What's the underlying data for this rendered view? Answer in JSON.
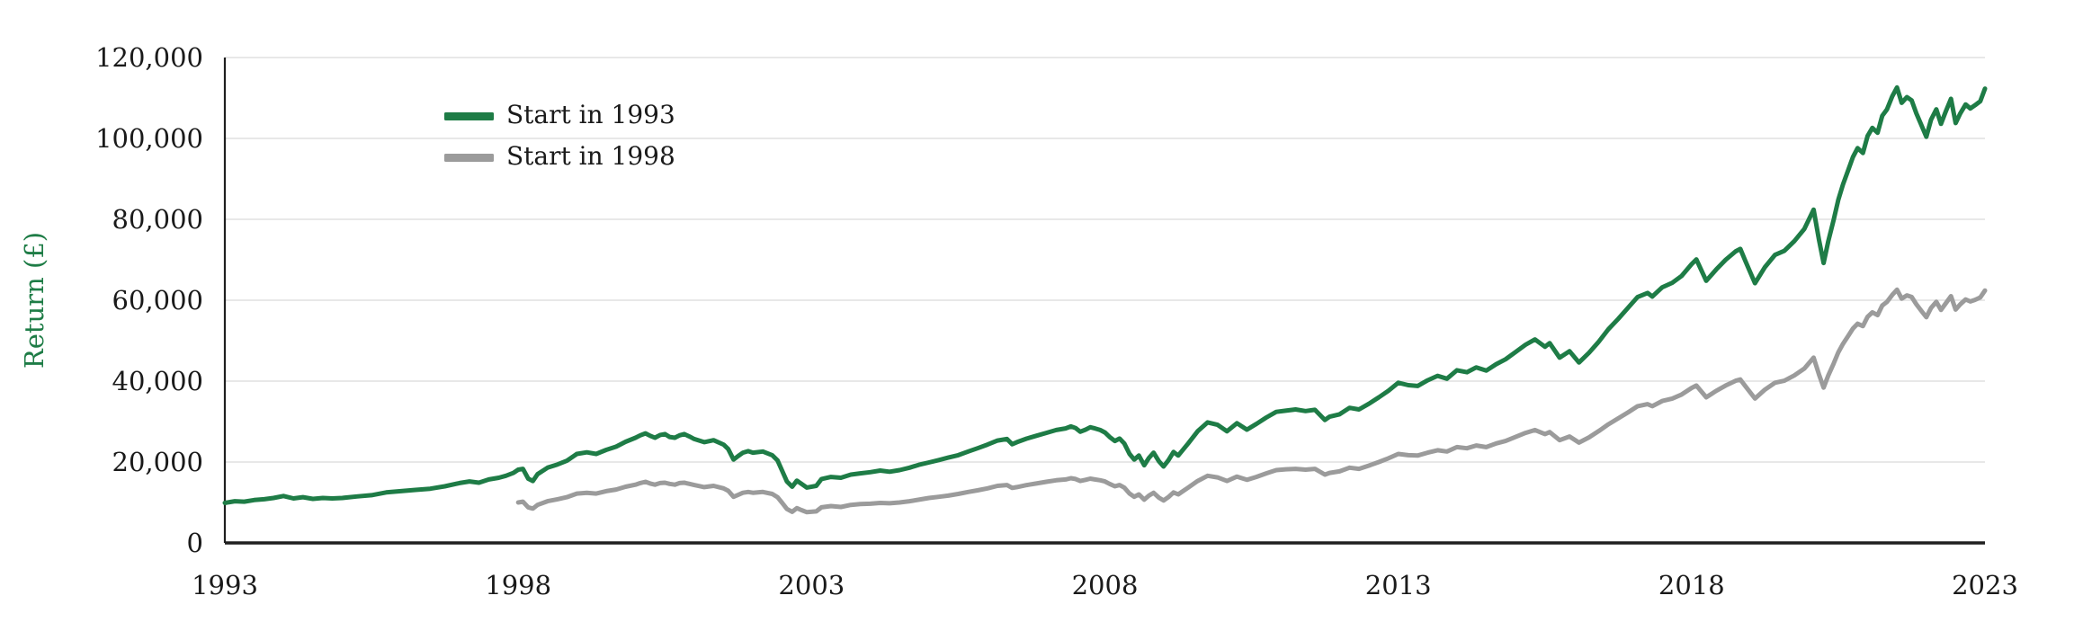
{
  "chart": {
    "y_axis_label": "Return (£)",
    "legend_items": [
      "Start in 1993",
      "Start in 1998"
    ],
    "colors": {
      "series_1993": "#1e7c46",
      "series_1998": "#9b9b9b",
      "gridline": "#e0e0e0",
      "axis": "#1f1f1f",
      "tick_text": "#1a1a1a",
      "y_label_text": "#1e7c46",
      "background": "#ffffff"
    }
  },
  "chart_data": {
    "type": "line",
    "title": "",
    "xlabel": "",
    "ylabel": "Return (£)",
    "xlim": [
      1993,
      2023
    ],
    "ylim": [
      0,
      120000
    ],
    "x_tick_values": [
      1993,
      1998,
      2003,
      2008,
      2013,
      2018,
      2023
    ],
    "x_tick_labels": [
      "1993",
      "1998",
      "2003",
      "2008",
      "2013",
      "2018",
      "2023"
    ],
    "y_tick_values": [
      0,
      20000,
      40000,
      60000,
      80000,
      100000,
      120000
    ],
    "y_tick_labels": [
      "0",
      "20,000",
      "40,000",
      "60,000",
      "80,000",
      "100,000",
      "120,000"
    ],
    "grid": "horizontal",
    "legend_position": "upper-left-inside",
    "series": [
      {
        "name": "Start in 1993",
        "color": "#1e7c46",
        "x": [
          1993.0,
          1993.17,
          1993.33,
          1993.5,
          1993.67,
          1993.83,
          1994.0,
          1994.17,
          1994.33,
          1994.5,
          1994.67,
          1994.83,
          1995.0,
          1995.25,
          1995.5,
          1995.75,
          1996.0,
          1996.25,
          1996.5,
          1996.75,
          1997.0,
          1997.17,
          1997.33,
          1997.5,
          1997.67,
          1997.79,
          1997.92,
          1998.0,
          1998.08,
          1998.17,
          1998.25,
          1998.33,
          1998.5,
          1998.67,
          1998.83,
          1999.0,
          1999.17,
          1999.33,
          1999.5,
          1999.67,
          1999.83,
          2000.0,
          2000.08,
          2000.17,
          2000.25,
          2000.33,
          2000.42,
          2000.5,
          2000.58,
          2000.67,
          2000.75,
          2000.83,
          2000.92,
          2001.0,
          2001.17,
          2001.33,
          2001.5,
          2001.58,
          2001.67,
          2001.75,
          2001.83,
          2001.92,
          2002.0,
          2002.17,
          2002.33,
          2002.42,
          2002.5,
          2002.58,
          2002.67,
          2002.75,
          2002.83,
          2002.92,
          2003.08,
          2003.17,
          2003.33,
          2003.5,
          2003.67,
          2003.83,
          2004.0,
          2004.17,
          2004.33,
          2004.5,
          2004.67,
          2004.83,
          2005.0,
          2005.17,
          2005.33,
          2005.5,
          2005.67,
          2005.83,
          2006.0,
          2006.17,
          2006.33,
          2006.42,
          2006.5,
          2006.67,
          2006.83,
          2007.0,
          2007.17,
          2007.33,
          2007.42,
          2007.5,
          2007.58,
          2007.67,
          2007.75,
          2007.83,
          2007.92,
          2008.0,
          2008.08,
          2008.17,
          2008.25,
          2008.33,
          2008.42,
          2008.5,
          2008.58,
          2008.67,
          2008.75,
          2008.83,
          2008.92,
          2009.0,
          2009.08,
          2009.17,
          2009.25,
          2009.42,
          2009.58,
          2009.75,
          2009.92,
          2010.08,
          2010.25,
          2010.42,
          2010.58,
          2010.75,
          2010.92,
          2011.08,
          2011.25,
          2011.42,
          2011.58,
          2011.75,
          2011.83,
          2012.0,
          2012.17,
          2012.33,
          2012.5,
          2012.67,
          2012.83,
          2013.0,
          2013.17,
          2013.33,
          2013.5,
          2013.67,
          2013.83,
          2014.0,
          2014.17,
          2014.33,
          2014.5,
          2014.67,
          2014.83,
          2015.0,
          2015.17,
          2015.33,
          2015.5,
          2015.58,
          2015.75,
          2015.92,
          2016.08,
          2016.25,
          2016.42,
          2016.58,
          2016.75,
          2016.92,
          2017.08,
          2017.25,
          2017.33,
          2017.5,
          2017.67,
          2017.83,
          2018.0,
          2018.08,
          2018.25,
          2018.42,
          2018.58,
          2018.75,
          2018.83,
          2018.92,
          2019.08,
          2019.25,
          2019.42,
          2019.58,
          2019.75,
          2019.92,
          2020.08,
          2020.17,
          2020.25,
          2020.33,
          2020.42,
          2020.5,
          2020.58,
          2020.67,
          2020.75,
          2020.83,
          2020.92,
          2021.0,
          2021.08,
          2021.17,
          2021.25,
          2021.33,
          2021.42,
          2021.5,
          2021.58,
          2021.67,
          2021.75,
          2021.83,
          2021.92,
          2022.0,
          2022.08,
          2022.17,
          2022.25,
          2022.33,
          2022.42,
          2022.5,
          2022.58,
          2022.67,
          2022.75,
          2022.83,
          2022.92,
          2023.0
        ],
        "y": [
          9900,
          10300,
          10200,
          10600,
          10800,
          11100,
          11600,
          11000,
          11300,
          10900,
          11100,
          11000,
          11100,
          11500,
          11800,
          12500,
          12800,
          13100,
          13400,
          14000,
          14800,
          15200,
          14900,
          15700,
          16100,
          16600,
          17300,
          18100,
          18300,
          15900,
          15300,
          17000,
          18600,
          19400,
          20300,
          22000,
          22400,
          22000,
          23000,
          23800,
          25000,
          26000,
          26600,
          27100,
          26500,
          26000,
          26700,
          26900,
          26200,
          26000,
          26600,
          26900,
          26300,
          25700,
          24900,
          25400,
          24300,
          23200,
          20600,
          21500,
          22300,
          22700,
          22300,
          22600,
          21700,
          20400,
          17800,
          15200,
          13900,
          15400,
          14600,
          13700,
          14100,
          15800,
          16300,
          16100,
          16900,
          17200,
          17500,
          17900,
          17600,
          18000,
          18600,
          19300,
          19900,
          20500,
          21100,
          21700,
          22600,
          23400,
          24300,
          25300,
          25700,
          24400,
          24900,
          25800,
          26500,
          27200,
          27900,
          28300,
          28800,
          28400,
          27500,
          28000,
          28600,
          28300,
          27900,
          27300,
          26200,
          25200,
          25800,
          24600,
          22000,
          20600,
          21600,
          19200,
          21000,
          22300,
          20200,
          18900,
          20400,
          22500,
          21600,
          24600,
          27600,
          29800,
          29200,
          27600,
          29600,
          28000,
          29400,
          31000,
          32400,
          32700,
          33000,
          32600,
          32900,
          30400,
          31200,
          31800,
          33400,
          33000,
          34400,
          36000,
          37600,
          39600,
          39000,
          38800,
          40200,
          41300,
          40600,
          42700,
          42200,
          43400,
          42600,
          44200,
          45400,
          47200,
          49000,
          50300,
          48500,
          49400,
          45800,
          47400,
          44600,
          47000,
          49800,
          52800,
          55400,
          58200,
          60800,
          61800,
          60900,
          63200,
          64300,
          66000,
          68900,
          70100,
          64800,
          67600,
          70000,
          72100,
          72700,
          69600,
          64200,
          68200,
          71200,
          72200,
          74600,
          77600,
          82400,
          75000,
          69200,
          74600,
          79800,
          84800,
          88600,
          92200,
          95400,
          97600,
          96400,
          100600,
          102600,
          101400,
          105600,
          107200,
          110400,
          112600,
          108800,
          110200,
          109400,
          106200,
          103200,
          100400,
          104600,
          107200,
          103600,
          106600,
          109800,
          103800,
          106200,
          108400,
          107400,
          108200,
          109200,
          112300
        ]
      },
      {
        "name": "Start in 1998",
        "color": "#9b9b9b",
        "x": [
          1998.0,
          1998.08,
          1998.17,
          1998.25,
          1998.33,
          1998.5,
          1998.67,
          1998.83,
          1999.0,
          1999.17,
          1999.33,
          1999.5,
          1999.67,
          1999.83,
          2000.0,
          2000.08,
          2000.17,
          2000.25,
          2000.33,
          2000.42,
          2000.5,
          2000.58,
          2000.67,
          2000.75,
          2000.83,
          2000.92,
          2001.0,
          2001.17,
          2001.33,
          2001.5,
          2001.58,
          2001.67,
          2001.75,
          2001.83,
          2001.92,
          2002.0,
          2002.17,
          2002.33,
          2002.42,
          2002.5,
          2002.58,
          2002.67,
          2002.75,
          2002.83,
          2002.92,
          2003.08,
          2003.17,
          2003.33,
          2003.5,
          2003.67,
          2003.83,
          2004.0,
          2004.17,
          2004.33,
          2004.5,
          2004.67,
          2004.83,
          2005.0,
          2005.17,
          2005.33,
          2005.5,
          2005.67,
          2005.83,
          2006.0,
          2006.17,
          2006.33,
          2006.42,
          2006.5,
          2006.67,
          2006.83,
          2007.0,
          2007.17,
          2007.33,
          2007.42,
          2007.5,
          2007.58,
          2007.67,
          2007.75,
          2007.83,
          2007.92,
          2008.0,
          2008.08,
          2008.17,
          2008.25,
          2008.33,
          2008.42,
          2008.5,
          2008.58,
          2008.67,
          2008.75,
          2008.83,
          2008.92,
          2009.0,
          2009.08,
          2009.17,
          2009.25,
          2009.42,
          2009.58,
          2009.75,
          2009.92,
          2010.08,
          2010.25,
          2010.42,
          2010.58,
          2010.75,
          2010.92,
          2011.08,
          2011.25,
          2011.42,
          2011.58,
          2011.75,
          2011.83,
          2012.0,
          2012.17,
          2012.33,
          2012.5,
          2012.67,
          2012.83,
          2013.0,
          2013.17,
          2013.33,
          2013.5,
          2013.67,
          2013.83,
          2014.0,
          2014.17,
          2014.33,
          2014.5,
          2014.67,
          2014.83,
          2015.0,
          2015.17,
          2015.33,
          2015.5,
          2015.58,
          2015.75,
          2015.92,
          2016.08,
          2016.25,
          2016.42,
          2016.58,
          2016.75,
          2016.92,
          2017.08,
          2017.25,
          2017.33,
          2017.5,
          2017.67,
          2017.83,
          2018.0,
          2018.08,
          2018.25,
          2018.42,
          2018.58,
          2018.75,
          2018.83,
          2018.92,
          2019.08,
          2019.25,
          2019.42,
          2019.58,
          2019.75,
          2019.92,
          2020.08,
          2020.17,
          2020.25,
          2020.33,
          2020.42,
          2020.5,
          2020.58,
          2020.67,
          2020.75,
          2020.83,
          2020.92,
          2021.0,
          2021.08,
          2021.17,
          2021.25,
          2021.33,
          2021.42,
          2021.5,
          2021.58,
          2021.67,
          2021.75,
          2021.83,
          2021.92,
          2022.0,
          2022.08,
          2022.17,
          2022.25,
          2022.33,
          2022.42,
          2022.5,
          2022.58,
          2022.67,
          2022.75,
          2022.83,
          2022.92,
          2023.0
        ],
        "y": [
          10000,
          10200,
          8800,
          8500,
          9400,
          10300,
          10800,
          11300,
          12200,
          12400,
          12200,
          12800,
          13200,
          13900,
          14400,
          14800,
          15100,
          14700,
          14400,
          14800,
          14900,
          14600,
          14400,
          14800,
          14900,
          14600,
          14300,
          13800,
          14100,
          13500,
          12900,
          11400,
          11900,
          12400,
          12600,
          12400,
          12600,
          12100,
          11300,
          9900,
          8400,
          7700,
          8600,
          8100,
          7600,
          7800,
          8800,
          9100,
          8900,
          9400,
          9600,
          9700,
          9900,
          9800,
          10000,
          10300,
          10700,
          11100,
          11400,
          11700,
          12100,
          12600,
          13000,
          13500,
          14100,
          14300,
          13600,
          13800,
          14300,
          14700,
          15100,
          15500,
          15700,
          16000,
          15800,
          15300,
          15600,
          15900,
          15700,
          15500,
          15200,
          14600,
          14000,
          14300,
          13700,
          12200,
          11400,
          12000,
          10700,
          11700,
          12400,
          11200,
          10500,
          11300,
          12500,
          12000,
          13700,
          15300,
          16600,
          16200,
          15300,
          16400,
          15600,
          16300,
          17200,
          18000,
          18200,
          18300,
          18100,
          18300,
          16900,
          17300,
          17700,
          18600,
          18300,
          19100,
          20000,
          20900,
          22000,
          21700,
          21600,
          22300,
          22900,
          22600,
          23700,
          23400,
          24100,
          23700,
          24600,
          25200,
          26200,
          27200,
          27900,
          26900,
          27400,
          25400,
          26300,
          24800,
          26100,
          27700,
          29300,
          30800,
          32300,
          33800,
          34300,
          33800,
          35100,
          35700,
          36700,
          38300,
          38900,
          36000,
          37600,
          38900,
          40100,
          40400,
          38700,
          35700,
          37900,
          39600,
          40100,
          41400,
          43100,
          45800,
          41700,
          38400,
          41400,
          44300,
          47100,
          49200,
          51200,
          53000,
          54200,
          53600,
          55900,
          57000,
          56300,
          58700,
          59600,
          61300,
          62600,
          60400,
          61200,
          60800,
          59000,
          57300,
          55800,
          58100,
          59600,
          57600,
          59200,
          61000,
          57700,
          59000,
          60200,
          59700,
          60100,
          60700,
          62400
        ]
      }
    ]
  }
}
